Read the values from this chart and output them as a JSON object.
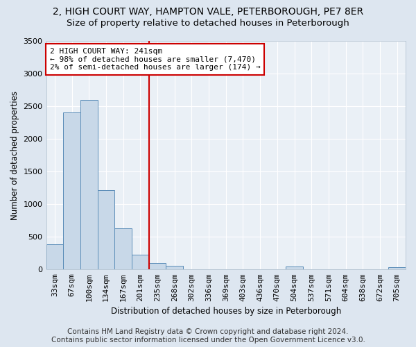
{
  "title_line1": "2, HIGH COURT WAY, HAMPTON VALE, PETERBOROUGH, PE7 8ER",
  "title_line2": "Size of property relative to detached houses in Peterborough",
  "xlabel": "Distribution of detached houses by size in Peterborough",
  "ylabel": "Number of detached properties",
  "categories": [
    "33sqm",
    "67sqm",
    "100sqm",
    "134sqm",
    "167sqm",
    "201sqm",
    "235sqm",
    "268sqm",
    "302sqm",
    "336sqm",
    "369sqm",
    "403sqm",
    "436sqm",
    "470sqm",
    "504sqm",
    "537sqm",
    "571sqm",
    "604sqm",
    "638sqm",
    "672sqm",
    "705sqm"
  ],
  "values": [
    390,
    2400,
    2600,
    1220,
    630,
    230,
    100,
    60,
    0,
    0,
    0,
    0,
    0,
    0,
    50,
    0,
    0,
    0,
    0,
    0,
    40
  ],
  "bar_color": "#c8d8e8",
  "bar_edge_color": "#5b8db8",
  "annotation_line1": "2 HIGH COURT WAY: 241sqm",
  "annotation_line2": "← 98% of detached houses are smaller (7,470)",
  "annotation_line3": "2% of semi-detached houses are larger (174) →",
  "vline_x_index": 6,
  "vline_color": "#cc0000",
  "ylim": [
    0,
    3500
  ],
  "yticks": [
    0,
    500,
    1000,
    1500,
    2000,
    2500,
    3000,
    3500
  ],
  "footer_line1": "Contains HM Land Registry data © Crown copyright and database right 2024.",
  "footer_line2": "Contains public sector information licensed under the Open Government Licence v3.0.",
  "bg_color": "#dde6f0",
  "plot_bg_color": "#eaf0f6",
  "grid_color": "#ffffff",
  "title_fontsize": 10,
  "subtitle_fontsize": 9.5,
  "axis_label_fontsize": 8.5,
  "tick_fontsize": 8,
  "footer_fontsize": 7.5,
  "annot_fontsize": 8
}
